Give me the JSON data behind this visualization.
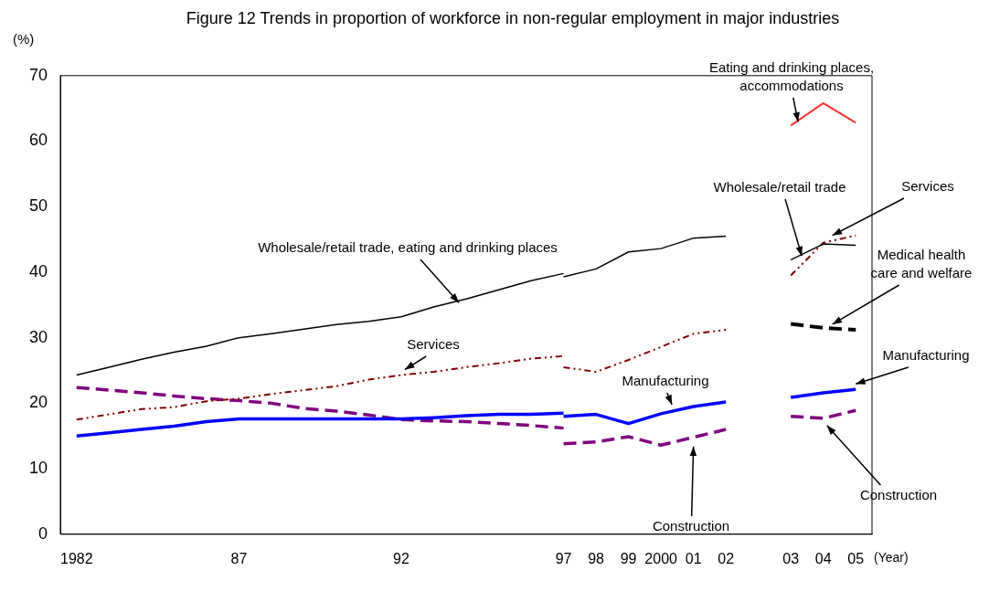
{
  "chart_data": {
    "type": "line",
    "title": "Figure 12  Trends in proportion of workforce in non-regular employment in major industries",
    "ylabel": "(%)",
    "xlabel": "(Year)",
    "categories": [
      "1982",
      null,
      null,
      null,
      null,
      "87",
      null,
      null,
      null,
      null,
      "92",
      null,
      null,
      null,
      null,
      "97",
      "98",
      "99",
      "2000",
      "01",
      "02",
      null,
      "03",
      "04",
      "05"
    ],
    "ylim": [
      0,
      70
    ],
    "yticks": [
      0,
      10,
      20,
      30,
      40,
      50,
      60,
      70
    ],
    "grid": false,
    "legend": false,
    "marker": "none",
    "series": [
      {
        "name": "Wholesale/retail trade, eating and drinking places",
        "color": "#000000",
        "line_style": "solid",
        "values": [
          24.3,
          25.5,
          26.7,
          27.8,
          28.7,
          30.0,
          30.6,
          31.3,
          32.0,
          32.5,
          33.2,
          34.7,
          35.9,
          37.3,
          38.7,
          39.8,
          null,
          null,
          null,
          null,
          null,
          null,
          null,
          null,
          null
        ]
      },
      {
        "color": "#000000",
        "line_style": "solid",
        "values": [
          null,
          null,
          null,
          null,
          null,
          null,
          null,
          null,
          null,
          null,
          null,
          null,
          null,
          null,
          null,
          39.3,
          40.5,
          43.1,
          43.6,
          45.2,
          45.5,
          null,
          null,
          null,
          null
        ]
      },
      {
        "name": "Services",
        "color": "#800000",
        "line_style": "dotted",
        "values": [
          17.5,
          18.3,
          19.1,
          19.4,
          20.3,
          20.7,
          21.4,
          22.0,
          22.6,
          23.6,
          24.3,
          24.8,
          25.5,
          26.1,
          26.8,
          27.2,
          null,
          null,
          null,
          null,
          null,
          null,
          null,
          null,
          null
        ]
      },
      {
        "color": "#800000",
        "line_style": "dotted",
        "values": [
          null,
          null,
          null,
          null,
          null,
          null,
          null,
          null,
          null,
          null,
          null,
          null,
          null,
          null,
          null,
          25.5,
          24.8,
          26.6,
          28.6,
          30.6,
          31.2,
          null,
          null,
          null,
          null
        ]
      },
      {
        "color": "#0000ff",
        "line_style": "solid",
        "values": [
          15.0,
          15.5,
          16.0,
          16.5,
          17.2,
          17.6,
          17.6,
          17.6,
          17.6,
          17.6,
          17.6,
          17.8,
          18.1,
          18.3,
          18.3,
          18.5,
          null,
          null,
          null,
          null,
          null,
          null,
          null,
          null,
          null
        ]
      },
      {
        "name": "Manufacturing",
        "color": "#0000ff",
        "line_style": "solid",
        "values": [
          null,
          null,
          null,
          null,
          null,
          null,
          null,
          null,
          null,
          null,
          null,
          null,
          null,
          null,
          null,
          18.0,
          18.3,
          16.9,
          18.4,
          19.5,
          20.2,
          null,
          null,
          null,
          null
        ]
      },
      {
        "color": "#800080",
        "line_style": "dashed",
        "values": [
          22.4,
          22.0,
          21.6,
          21.1,
          20.7,
          20.4,
          20.0,
          19.2,
          18.8,
          18.2,
          17.5,
          17.3,
          17.2,
          16.9,
          16.6,
          16.2,
          null,
          null,
          null,
          null,
          null,
          null,
          null,
          null,
          null
        ]
      },
      {
        "name": "Construction",
        "color": "#800080",
        "line_style": "dashed",
        "values": [
          null,
          null,
          null,
          null,
          null,
          null,
          null,
          null,
          null,
          null,
          null,
          null,
          null,
          null,
          null,
          13.8,
          14.1,
          14.9,
          13.6,
          14.8,
          16.0,
          null,
          null,
          null,
          null
        ]
      },
      {
        "name": "Wholesale/retail trade",
        "color": "#000000",
        "line_style": "solid",
        "values": [
          null,
          null,
          null,
          null,
          null,
          null,
          null,
          null,
          null,
          null,
          null,
          null,
          null,
          null,
          null,
          null,
          null,
          null,
          null,
          null,
          null,
          null,
          41.9,
          44.3,
          44.1
        ]
      },
      {
        "name": "Services",
        "color": "#800000",
        "line_style": "dotted",
        "values": [
          null,
          null,
          null,
          null,
          null,
          null,
          null,
          null,
          null,
          null,
          null,
          null,
          null,
          null,
          null,
          null,
          null,
          null,
          null,
          null,
          null,
          null,
          39.5,
          44.5,
          45.6
        ]
      },
      {
        "name": "Medical health care and welfare",
        "color": "#000000",
        "line_style": "dashed",
        "values": [
          null,
          null,
          null,
          null,
          null,
          null,
          null,
          null,
          null,
          null,
          null,
          null,
          null,
          null,
          null,
          null,
          null,
          null,
          null,
          null,
          null,
          null,
          32.1,
          31.5,
          31.2
        ]
      },
      {
        "name": "Manufacturing",
        "color": "#0000ff",
        "line_style": "solid",
        "values": [
          null,
          null,
          null,
          null,
          null,
          null,
          null,
          null,
          null,
          null,
          null,
          null,
          null,
          null,
          null,
          null,
          null,
          null,
          null,
          null,
          null,
          null,
          20.9,
          21.6,
          22.1
        ]
      },
      {
        "name": "Construction",
        "color": "#800080",
        "line_style": "dashed",
        "values": [
          null,
          null,
          null,
          null,
          null,
          null,
          null,
          null,
          null,
          null,
          null,
          null,
          null,
          null,
          null,
          null,
          null,
          null,
          null,
          null,
          null,
          null,
          18.0,
          17.7,
          18.9
        ]
      },
      {
        "name": "Eating and drinking places, accommodations",
        "color": "#ff3333",
        "line_style": "solid",
        "values": [
          null,
          null,
          null,
          null,
          null,
          null,
          null,
          null,
          null,
          null,
          null,
          null,
          null,
          null,
          null,
          null,
          null,
          null,
          null,
          null,
          null,
          null,
          62.4,
          65.8,
          62.8
        ]
      }
    ]
  }
}
